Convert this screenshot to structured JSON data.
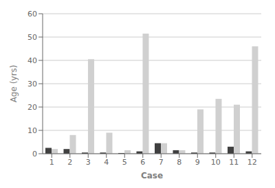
{
  "chart_data": {
    "type": "bar",
    "xlabel": "Case",
    "ylabel": "Age (yrs)",
    "categories": [
      "1",
      "2",
      "3",
      "4",
      "5",
      "6",
      "7",
      "8",
      "9",
      "10",
      "11",
      "12"
    ],
    "series": [
      {
        "color": "#404040",
        "values": [
          2.5,
          2.0,
          0.5,
          0.5,
          0.3,
          1.0,
          4.5,
          1.5,
          0.5,
          0.5,
          3.0,
          1.0
        ]
      },
      {
        "color": "#d0d0d0",
        "values": [
          2.0,
          8.0,
          40.5,
          9.0,
          1.5,
          51.5,
          4.5,
          1.5,
          19.0,
          23.5,
          21.0,
          46.0
        ]
      }
    ],
    "ylim": [
      0,
      60
    ],
    "yticks": [
      0,
      10,
      20,
      30,
      40,
      50,
      60
    ],
    "grid": true
  }
}
